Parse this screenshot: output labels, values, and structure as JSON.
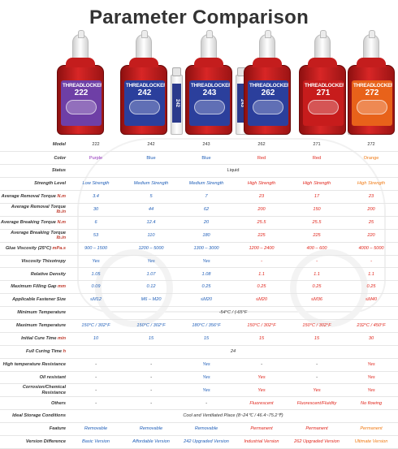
{
  "title": "Parameter Comparison",
  "colors": {
    "red": "#e0251b",
    "blue": "#1f5eb8",
    "purple": "#8e2bb8",
    "orange": "#f07a14",
    "black": "#333333"
  },
  "products": [
    {
      "title": "THREADLOCKER",
      "number": "222",
      "label_color": "#6e3fa6",
      "tube": ""
    },
    {
      "title": "THREADLOCKER",
      "number": "242",
      "label_color": "#2b3f9c",
      "tube": "242"
    },
    {
      "title": "THREADLOCKER",
      "number": "243",
      "label_color": "#2b3f9c",
      "tube": "243"
    },
    {
      "title": "THREADLOCKER",
      "number": "262",
      "label_color": "#2b3f9c",
      "tube": ""
    },
    {
      "title": "THREADLOCKER",
      "number": "271",
      "label_color": "#c71c1c",
      "tube": "271"
    },
    {
      "title": "THREADLOCKER",
      "number": "272",
      "label_color": "#e8621a",
      "tube": ""
    }
  ],
  "rows": [
    {
      "label": "Model",
      "cells": [
        [
          "222",
          "black"
        ],
        [
          "242",
          "black"
        ],
        [
          "243",
          "black"
        ],
        [
          "262",
          "black"
        ],
        [
          "271",
          "black"
        ],
        [
          "272",
          "black"
        ]
      ]
    },
    {
      "label": "Color",
      "cells": [
        [
          "Purple",
          "purple"
        ],
        [
          "Blue",
          "blue"
        ],
        [
          "Blue",
          "blue"
        ],
        [
          "Red",
          "red"
        ],
        [
          "Red",
          "red"
        ],
        [
          "Orange",
          "orange"
        ]
      ]
    },
    {
      "label": "Status",
      "span": "Liquid"
    },
    {
      "label": "Strength Level",
      "cells": [
        [
          "Low Strength",
          "blue"
        ],
        [
          "Medium Strength",
          "blue"
        ],
        [
          "Medium Strength",
          "blue"
        ],
        [
          "High Strength",
          "red"
        ],
        [
          "High Strength",
          "red"
        ],
        [
          "High Strength",
          "orange"
        ]
      ]
    },
    {
      "label": "Average Removal Torque",
      "unit": "N.m",
      "cells": [
        [
          "3.4",
          "blue"
        ],
        [
          "5",
          "blue"
        ],
        [
          "7",
          "blue"
        ],
        [
          "23",
          "red"
        ],
        [
          "17",
          "red"
        ],
        [
          "23",
          "red"
        ]
      ]
    },
    {
      "label": "Average Removal Torque",
      "unit": "lb.in",
      "cells": [
        [
          "30",
          "blue"
        ],
        [
          "44",
          "blue"
        ],
        [
          "62",
          "blue"
        ],
        [
          "200",
          "red"
        ],
        [
          "150",
          "red"
        ],
        [
          "200",
          "red"
        ]
      ]
    },
    {
      "label": "Average Breaking Torque",
      "unit": "N.m",
      "cells": [
        [
          "6",
          "blue"
        ],
        [
          "12.4",
          "blue"
        ],
        [
          "20",
          "blue"
        ],
        [
          "25.5",
          "red"
        ],
        [
          "25.5",
          "red"
        ],
        [
          "25",
          "red"
        ]
      ]
    },
    {
      "label": "Average Breaking Torque",
      "unit": "lb.in",
      "cells": [
        [
          "53",
          "blue"
        ],
        [
          "110",
          "blue"
        ],
        [
          "180",
          "blue"
        ],
        [
          "225",
          "red"
        ],
        [
          "225",
          "red"
        ],
        [
          "220",
          "red"
        ]
      ]
    },
    {
      "label": "Glue Viscosity (25°C)",
      "unit": "mPa.s",
      "cells": [
        [
          "900 – 1500",
          "blue"
        ],
        [
          "1200 – 5000",
          "blue"
        ],
        [
          "1300 – 3000",
          "blue"
        ],
        [
          "1200 – 2400",
          "red"
        ],
        [
          "400 – 600",
          "red"
        ],
        [
          "4000 – 5000",
          "red"
        ]
      ]
    },
    {
      "label": "Viscosity Thixotropy",
      "cells": [
        [
          "Yes",
          "blue"
        ],
        [
          "Yes",
          "blue"
        ],
        [
          "Yes",
          "blue"
        ],
        [
          "-",
          "red"
        ],
        [
          "-",
          "red"
        ],
        [
          "-",
          "red"
        ]
      ]
    },
    {
      "label": "Relative Density",
      "cells": [
        [
          "1.05",
          "blue"
        ],
        [
          "1.07",
          "blue"
        ],
        [
          "1.08",
          "blue"
        ],
        [
          "1.1",
          "red"
        ],
        [
          "1.1",
          "red"
        ],
        [
          "1.1",
          "red"
        ]
      ]
    },
    {
      "label": "Maximum Filling Gap",
      "unit": "mm",
      "cells": [
        [
          "0.09",
          "blue"
        ],
        [
          "0.12",
          "blue"
        ],
        [
          "0.25",
          "blue"
        ],
        [
          "0.25",
          "red"
        ],
        [
          "0.25",
          "red"
        ],
        [
          "0.25",
          "red"
        ]
      ]
    },
    {
      "label": "Applicable Fastener Size",
      "cells": [
        [
          "≤M12",
          "blue"
        ],
        [
          "M6 – M20",
          "blue"
        ],
        [
          "≤M20",
          "blue"
        ],
        [
          "≤M20",
          "red"
        ],
        [
          "≤M36",
          "red"
        ],
        [
          "≤M40",
          "red"
        ]
      ]
    },
    {
      "label": "Minimum Temperature",
      "span": "-54°C / (-65°F"
    },
    {
      "label": "Maximum Temperature",
      "cells": [
        [
          "150°C / 302°F",
          "blue"
        ],
        [
          "150°C / 302°F",
          "blue"
        ],
        [
          "180°C / 356°F",
          "blue"
        ],
        [
          "150°C / 302°F",
          "red"
        ],
        [
          "150°C / 302°F",
          "red"
        ],
        [
          "232°C / 450°F",
          "red"
        ]
      ]
    },
    {
      "label": "Initial Cure Time",
      "unit": "min",
      "cells": [
        [
          "10",
          "blue"
        ],
        [
          "15",
          "blue"
        ],
        [
          "15",
          "blue"
        ],
        [
          "15",
          "red"
        ],
        [
          "15",
          "red"
        ],
        [
          "30",
          "red"
        ]
      ]
    },
    {
      "label": "Full Curing Time",
      "unit": "h",
      "span": "24"
    },
    {
      "label": "High temperature Resistance",
      "cells": [
        [
          "-",
          "black"
        ],
        [
          "-",
          "black"
        ],
        [
          "Yes",
          "blue"
        ],
        [
          "-",
          "black"
        ],
        [
          "-",
          "black"
        ],
        [
          "Yes",
          "red"
        ]
      ]
    },
    {
      "label": "Oil resistant",
      "cells": [
        [
          "-",
          "black"
        ],
        [
          "-",
          "black"
        ],
        [
          "Yes",
          "blue"
        ],
        [
          "Yes",
          "red"
        ],
        [
          "-",
          "black"
        ],
        [
          "Yes",
          "red"
        ]
      ]
    },
    {
      "label": "Corrosion/Chemical Resistance",
      "cells": [
        [
          "-",
          "black"
        ],
        [
          "-",
          "black"
        ],
        [
          "Yes",
          "blue"
        ],
        [
          "Yes",
          "red"
        ],
        [
          "Yes",
          "red"
        ],
        [
          "Yes",
          "red"
        ]
      ]
    },
    {
      "label": "Others",
      "cells": [
        [
          "-",
          "black"
        ],
        [
          "-",
          "black"
        ],
        [
          "-",
          "black"
        ],
        [
          "Fluorescent",
          "red"
        ],
        [
          "Fluorescent/Fluidity",
          "red"
        ],
        [
          "No flowing",
          "red"
        ]
      ]
    },
    {
      "label": "Ideal Storage Conditions",
      "span": "Cool and Ventilated Place (8~24℃ / 46.4~75.2℉)"
    },
    {
      "label": "Feature",
      "cells": [
        [
          "Removable",
          "blue"
        ],
        [
          "Removable",
          "blue"
        ],
        [
          "Removable",
          "blue"
        ],
        [
          "Permanent",
          "red"
        ],
        [
          "Permanent",
          "red"
        ],
        [
          "Permanent",
          "orange"
        ]
      ]
    },
    {
      "label": "Version Difference",
      "cells": [
        [
          "Basic Version",
          "blue"
        ],
        [
          "Affordable Version",
          "blue"
        ],
        [
          "242 Upgraded Version",
          "blue"
        ],
        [
          "Industrial Version",
          "red"
        ],
        [
          "262 Upgraded Version",
          "red"
        ],
        [
          "Ultimate Version",
          "orange"
        ]
      ]
    }
  ]
}
